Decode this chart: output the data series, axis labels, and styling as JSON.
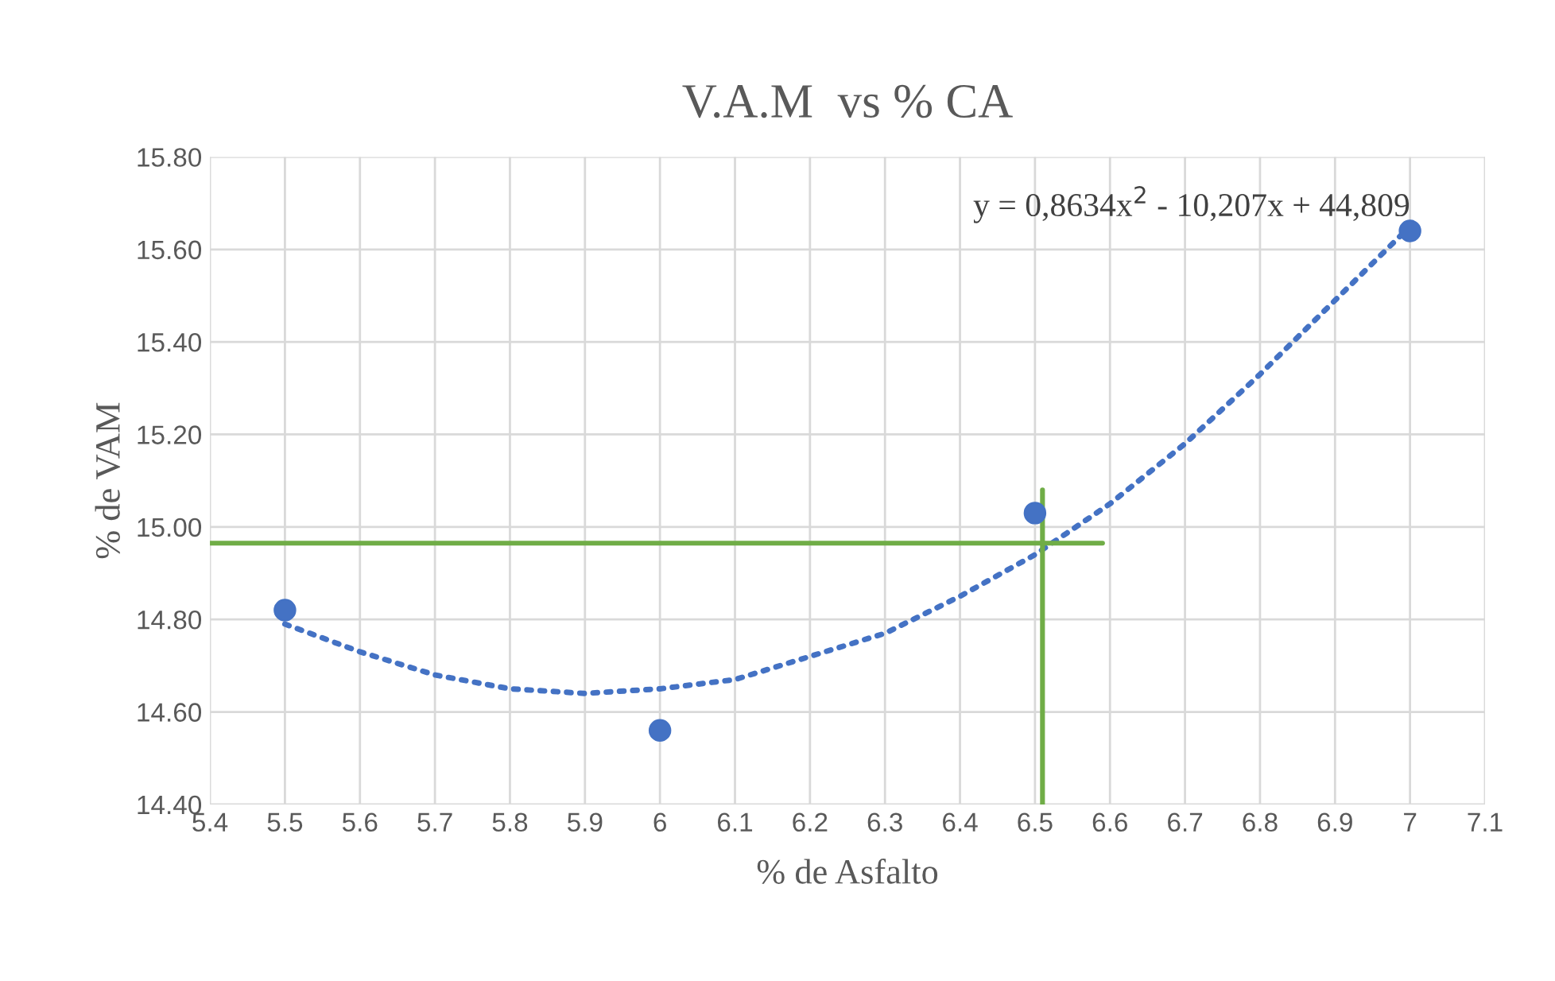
{
  "chart_data": {
    "type": "scatter",
    "title": "V.A.M  vs % CA",
    "xlabel": "% de Asfalto",
    "ylabel": "% de VAM",
    "xlim": [
      5.4,
      7.1
    ],
    "xticks": [
      5.4,
      5.5,
      5.6,
      5.7,
      5.8,
      5.9,
      6,
      6.1,
      6.2,
      6.3,
      6.4,
      6.5,
      6.6,
      6.7,
      6.8,
      6.9,
      7,
      7.1
    ],
    "ylim": [
      14.4,
      15.8
    ],
    "yticks": [
      {
        "value": 14.4,
        "label": "14.40"
      },
      {
        "value": 14.6,
        "label": "14.60"
      },
      {
        "value": 14.8,
        "label": "14.80"
      },
      {
        "value": 15.0,
        "label": "15.00"
      },
      {
        "value": 15.2,
        "label": "15.20"
      },
      {
        "value": 15.4,
        "label": "15.40"
      },
      {
        "value": 15.6,
        "label": "15.60"
      },
      {
        "value": 15.8,
        "label": "15.80"
      }
    ],
    "grid": true,
    "legend": false,
    "annotations": [
      "y = 0,8634x$^{2}$ - 10,207x + 44,809"
    ],
    "series": [
      {
        "color": "#4472c4",
        "marker": "circle",
        "x": [
          5.5,
          6,
          6.5,
          7
        ],
        "values": [
          14.82,
          14.56,
          15.03,
          15.64
        ]
      },
      {
        "type": "line",
        "color": "#4472c4",
        "marker": "none",
        "line_style": "dotted",
        "x": [
          5.5,
          5.6,
          5.7,
          5.8,
          5.9,
          6.0,
          6.1,
          6.2,
          6.3,
          6.4,
          6.5,
          6.6,
          6.7,
          6.8,
          6.9,
          7.0
        ],
        "values": [
          14.79,
          14.73,
          14.68,
          14.65,
          14.64,
          14.65,
          14.67,
          14.72,
          14.77,
          14.85,
          14.94,
          15.05,
          15.18,
          15.33,
          15.49,
          15.65
        ]
      },
      {
        "type": "line",
        "color": "#70ad47",
        "marker": "none",
        "line_style": "solid",
        "x": [
          5.4,
          6.59
        ],
        "values": [
          14.965,
          14.965
        ]
      },
      {
        "type": "line",
        "color": "#70ad47",
        "marker": "none",
        "line_style": "solid",
        "x": [
          6.51,
          6.51
        ],
        "values": [
          14.4,
          15.08
        ]
      }
    ]
  }
}
